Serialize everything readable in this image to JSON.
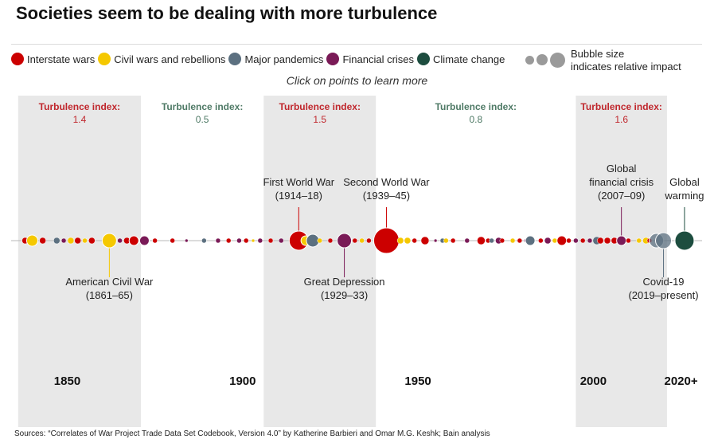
{
  "title": "Societies seem to be dealing with more turbulence",
  "subtitle": "Click on points to learn more",
  "source": "Sources: “Correlates of War Project Trade Data Set Codebook, Version 4.0” by Katherine Barbieri and Omar M.G. Keshk; Bain analysis",
  "legend": {
    "items": [
      {
        "label": "Interstate wars",
        "color": "#cc0000"
      },
      {
        "label": "Civil wars and rebellions",
        "color": "#f5c800"
      },
      {
        "label": "Major pandemics",
        "color": "#5c7080"
      },
      {
        "label": "Financial crises",
        "color": "#7a1a57"
      },
      {
        "label": "Climate change",
        "color": "#1d4d3f"
      }
    ],
    "bubble_note_line1": "Bubble size",
    "bubble_note_line2": "indicates relative impact"
  },
  "chart_data": {
    "type": "scatter",
    "x_axis": {
      "range": [
        1834,
        2031
      ],
      "tick_labels": [
        "1850",
        "1900",
        "1950",
        "2000",
        "2020+"
      ],
      "tick_values": [
        1850,
        1900,
        1950,
        2000,
        2025
      ]
    },
    "periods": [
      {
        "start": 1836,
        "end": 1871,
        "label": "Turbulence index:",
        "value": "1.4",
        "shaded": true,
        "color": "#c0272d"
      },
      {
        "start": 1871,
        "end": 1906,
        "label": "Turbulence index:",
        "value": "0.5",
        "shaded": false,
        "color": "#4f7a66"
      },
      {
        "start": 1906,
        "end": 1938,
        "label": "Turbulence index:",
        "value": "1.5",
        "shaded": true,
        "color": "#c0272d"
      },
      {
        "start": 1938,
        "end": 1995,
        "label": "Turbulence index:",
        "value": "0.8",
        "shaded": false,
        "color": "#4f7a66"
      },
      {
        "start": 1995,
        "end": 2021,
        "label": "Turbulence index:",
        "value": "1.6",
        "shaded": true,
        "color": "#c0272d"
      }
    ],
    "category_colors": {
      "war": "#cc0000",
      "civil": "#f5c800",
      "pandemic": "#5c7080",
      "financial": "#7a1a57",
      "climate": "#1d4d3f"
    },
    "points": [
      {
        "year": 1838,
        "cat": "war",
        "size": 4
      },
      {
        "year": 1840,
        "cat": "civil",
        "size": 7
      },
      {
        "year": 1843,
        "cat": "war",
        "size": 4
      },
      {
        "year": 1847,
        "cat": "pandemic",
        "size": 4
      },
      {
        "year": 1849,
        "cat": "financial",
        "size": 3
      },
      {
        "year": 1851,
        "cat": "civil",
        "size": 4
      },
      {
        "year": 1853,
        "cat": "war",
        "size": 4
      },
      {
        "year": 1855,
        "cat": "civil",
        "size": 3
      },
      {
        "year": 1857,
        "cat": "war",
        "size": 4
      },
      {
        "year": 1862,
        "cat": "civil",
        "size": 9
      },
      {
        "year": 1865,
        "cat": "financial",
        "size": 3
      },
      {
        "year": 1867,
        "cat": "war",
        "size": 4
      },
      {
        "year": 1869,
        "cat": "war",
        "size": 6
      },
      {
        "year": 1872,
        "cat": "financial",
        "size": 6
      },
      {
        "year": 1875,
        "cat": "war",
        "size": 3
      },
      {
        "year": 1880,
        "cat": "war",
        "size": 3
      },
      {
        "year": 1884,
        "cat": "financial",
        "size": 2
      },
      {
        "year": 1889,
        "cat": "pandemic",
        "size": 3
      },
      {
        "year": 1893,
        "cat": "financial",
        "size": 3
      },
      {
        "year": 1896,
        "cat": "war",
        "size": 3
      },
      {
        "year": 1899,
        "cat": "financial",
        "size": 3
      },
      {
        "year": 1901,
        "cat": "war",
        "size": 3
      },
      {
        "year": 1903,
        "cat": "civil",
        "size": 2
      },
      {
        "year": 1905,
        "cat": "financial",
        "size": 3
      },
      {
        "year": 1908,
        "cat": "war",
        "size": 3
      },
      {
        "year": 1911,
        "cat": "financial",
        "size": 3
      },
      {
        "year": 1916,
        "cat": "war",
        "size": 12
      },
      {
        "year": 1918,
        "cat": "civil",
        "size": 6
      },
      {
        "year": 1920,
        "cat": "pandemic",
        "size": 8
      },
      {
        "year": 1922,
        "cat": "civil",
        "size": 3
      },
      {
        "year": 1925,
        "cat": "war",
        "size": 3
      },
      {
        "year": 1929,
        "cat": "financial",
        "size": 9
      },
      {
        "year": 1932,
        "cat": "war",
        "size": 3
      },
      {
        "year": 1934,
        "cat": "civil",
        "size": 3
      },
      {
        "year": 1936,
        "cat": "war",
        "size": 3
      },
      {
        "year": 1939,
        "cat": "financial",
        "size": 3
      },
      {
        "year": 1941,
        "cat": "war",
        "size": 16
      },
      {
        "year": 1945,
        "cat": "civil",
        "size": 4
      },
      {
        "year": 1947,
        "cat": "civil",
        "size": 4
      },
      {
        "year": 1949,
        "cat": "war",
        "size": 3
      },
      {
        "year": 1952,
        "cat": "war",
        "size": 5
      },
      {
        "year": 1955,
        "cat": "financial",
        "size": 2
      },
      {
        "year": 1957,
        "cat": "pandemic",
        "size": 3
      },
      {
        "year": 1958,
        "cat": "civil",
        "size": 3
      },
      {
        "year": 1960,
        "cat": "war",
        "size": 3
      },
      {
        "year": 1964,
        "cat": "financial",
        "size": 3
      },
      {
        "year": 1968,
        "cat": "war",
        "size": 5
      },
      {
        "year": 1970,
        "cat": "war",
        "size": 3
      },
      {
        "year": 1971,
        "cat": "pandemic",
        "size": 3
      },
      {
        "year": 1973,
        "cat": "financial",
        "size": 4
      },
      {
        "year": 1974,
        "cat": "war",
        "size": 3
      },
      {
        "year": 1977,
        "cat": "civil",
        "size": 3
      },
      {
        "year": 1979,
        "cat": "war",
        "size": 3
      },
      {
        "year": 1981,
        "cat": "financial",
        "size": 3
      },
      {
        "year": 1982,
        "cat": "pandemic",
        "size": 6
      },
      {
        "year": 1985,
        "cat": "war",
        "size": 3
      },
      {
        "year": 1987,
        "cat": "financial",
        "size": 4
      },
      {
        "year": 1989,
        "cat": "civil",
        "size": 3
      },
      {
        "year": 1991,
        "cat": "war",
        "size": 6
      },
      {
        "year": 1993,
        "cat": "war",
        "size": 3
      },
      {
        "year": 1995,
        "cat": "financial",
        "size": 3
      },
      {
        "year": 1997,
        "cat": "war",
        "size": 3
      },
      {
        "year": 1999,
        "cat": "financial",
        "size": 3
      },
      {
        "year": 2001,
        "cat": "pandemic",
        "size": 5
      },
      {
        "year": 2002,
        "cat": "war",
        "size": 4
      },
      {
        "year": 2004,
        "cat": "war",
        "size": 4
      },
      {
        "year": 2006,
        "cat": "war",
        "size": 4
      },
      {
        "year": 2008,
        "cat": "financial",
        "size": 6
      },
      {
        "year": 2010,
        "cat": "war",
        "size": 3
      },
      {
        "year": 2013,
        "cat": "civil",
        "size": 3
      },
      {
        "year": 2015,
        "cat": "civil",
        "size": 4
      },
      {
        "year": 2016,
        "cat": "war",
        "size": 3
      },
      {
        "year": 2018,
        "cat": "pandemic",
        "size": 9
      },
      {
        "year": 2020,
        "cat": "pandemic",
        "size": 10
      },
      {
        "year": 2026,
        "cat": "climate",
        "size": 12
      }
    ],
    "annotations": [
      {
        "year": 1862,
        "line1": "American Civil War",
        "line2": "(1861–65)",
        "position": "below"
      },
      {
        "year": 1916,
        "line1": "First World War",
        "line2": "(1914–18)",
        "position": "above"
      },
      {
        "year": 1941,
        "line1": "Second World War",
        "line2": "(1939–45)",
        "position": "above"
      },
      {
        "year": 1929,
        "line1": "Great Depression",
        "line2": "(1929–33)",
        "position": "below"
      },
      {
        "year": 2008,
        "line1": "Global",
        "line2": "financial crisis",
        "line3": "(2007–09)",
        "position": "above"
      },
      {
        "year": 2026,
        "line1": "Global",
        "line2": "warming",
        "position": "above"
      },
      {
        "year": 2020,
        "line1": "Covid-19",
        "line2": "(2019–present)",
        "position": "below"
      }
    ]
  }
}
